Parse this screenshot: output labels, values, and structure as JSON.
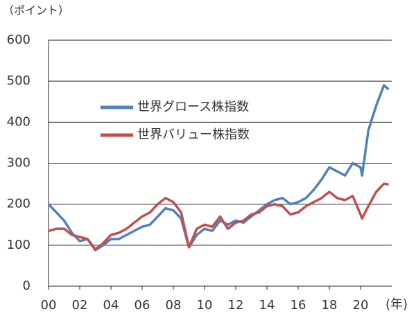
{
  "chart_data": {
    "type": "line",
    "y_label": "（ポイント）",
    "x_unit": "(年)",
    "x": [
      0,
      0.5,
      1,
      1.5,
      2,
      2.5,
      3,
      3.5,
      4,
      4.5,
      5,
      5.5,
      6,
      6.5,
      7,
      7.5,
      8,
      8.5,
      9,
      9.5,
      10,
      10.5,
      11,
      11.5,
      12,
      12.5,
      13,
      13.5,
      14,
      14.5,
      15,
      15.5,
      16,
      16.5,
      17,
      17.5,
      18,
      18.5,
      19,
      19.5,
      20,
      20.1,
      20.5,
      21,
      21.5,
      21.8
    ],
    "series": [
      {
        "name": "世界グロース株指数",
        "color": "#4f81bd",
        "values": [
          200,
          180,
          160,
          130,
          110,
          115,
          88,
          100,
          115,
          115,
          125,
          135,
          145,
          150,
          170,
          190,
          185,
          165,
          95,
          125,
          140,
          135,
          160,
          150,
          160,
          155,
          170,
          185,
          200,
          210,
          215,
          200,
          205,
          215,
          235,
          260,
          290,
          280,
          270,
          300,
          290,
          270,
          380,
          440,
          490,
          480
        ]
      },
      {
        "name": "世界バリュー株指数",
        "color": "#c0504d",
        "values": [
          135,
          140,
          140,
          125,
          120,
          115,
          90,
          105,
          125,
          130,
          140,
          155,
          170,
          180,
          200,
          215,
          205,
          180,
          95,
          140,
          150,
          145,
          170,
          140,
          155,
          160,
          175,
          180,
          195,
          200,
          195,
          175,
          180,
          195,
          205,
          215,
          230,
          215,
          210,
          220,
          175,
          165,
          195,
          230,
          250,
          248
        ]
      }
    ],
    "xlim": [
      0,
      22
    ],
    "xticks": [
      {
        "value": 0,
        "label": "00"
      },
      {
        "value": 2,
        "label": "02"
      },
      {
        "value": 4,
        "label": "04"
      },
      {
        "value": 6,
        "label": "06"
      },
      {
        "value": 8,
        "label": "08"
      },
      {
        "value": 10,
        "label": "10"
      },
      {
        "value": 12,
        "label": "12"
      },
      {
        "value": 14,
        "label": "14"
      },
      {
        "value": 16,
        "label": "16"
      },
      {
        "value": 18,
        "label": "18"
      },
      {
        "value": 20,
        "label": "20"
      }
    ],
    "ylim": [
      0,
      600
    ],
    "yticks": [
      0,
      100,
      200,
      300,
      400,
      500,
      600
    ],
    "grid": true
  }
}
